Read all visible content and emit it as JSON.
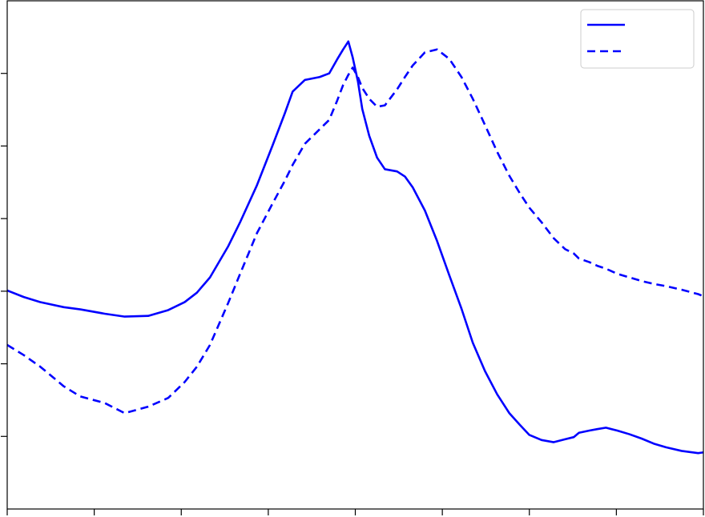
{
  "chart_data": {
    "type": "line",
    "x": [
      0,
      0.19,
      0.38,
      0.65,
      0.84,
      1.12,
      1.35,
      1.62,
      1.85,
      2.04,
      2.18,
      2.33,
      2.54,
      2.68,
      2.87,
      3.05,
      3.19,
      3.28,
      3.42,
      3.59,
      3.7,
      3.79,
      3.86,
      3.92,
      3.97,
      4.03,
      4.08,
      4.16,
      4.25,
      4.34,
      4.48,
      4.57,
      4.66,
      4.8,
      4.94,
      5.08,
      5.22,
      5.35,
      5.49,
      5.63,
      5.77,
      5.89,
      6.0,
      6.14,
      6.28,
      6.41,
      6.51,
      6.57,
      6.69,
      6.78,
      6.88,
      7.01,
      7.15,
      7.29,
      7.43,
      7.57,
      7.75,
      7.94,
      8
    ],
    "series": [
      {
        "color": "#0000ff",
        "linestyle": "solid",
        "values": [
          3.01,
          2.92,
          2.85,
          2.78,
          2.75,
          2.69,
          2.65,
          2.66,
          2.74,
          2.85,
          2.98,
          3.19,
          3.62,
          3.96,
          4.46,
          5.01,
          5.45,
          5.75,
          5.91,
          5.95,
          6.0,
          6.19,
          6.33,
          6.44,
          6.22,
          5.89,
          5.51,
          5.14,
          4.84,
          4.68,
          4.65,
          4.58,
          4.43,
          4.11,
          3.69,
          3.22,
          2.76,
          2.29,
          1.9,
          1.58,
          1.32,
          1.16,
          1.02,
          0.95,
          0.92,
          0.96,
          0.99,
          1.05,
          1.08,
          1.1,
          1.12,
          1.08,
          1.03,
          0.97,
          0.9,
          0.85,
          0.8,
          0.77,
          0.78
        ]
      },
      {
        "color": "#0000ff",
        "linestyle": "dashed",
        "values": [
          2.26,
          2.12,
          1.96,
          1.69,
          1.55,
          1.46,
          1.32,
          1.41,
          1.53,
          1.75,
          1.96,
          2.26,
          2.84,
          3.25,
          3.8,
          4.21,
          4.52,
          4.74,
          5.03,
          5.23,
          5.36,
          5.62,
          5.84,
          5.98,
          6.08,
          5.95,
          5.8,
          5.65,
          5.54,
          5.56,
          5.78,
          5.95,
          6.11,
          6.29,
          6.33,
          6.2,
          5.95,
          5.65,
          5.29,
          4.92,
          4.59,
          4.35,
          4.15,
          3.95,
          3.73,
          3.58,
          3.52,
          3.45,
          3.4,
          3.35,
          3.31,
          3.24,
          3.19,
          3.14,
          3.1,
          3.07,
          3.02,
          2.96,
          2.93
        ]
      }
    ],
    "xlim": [
      0,
      8
    ],
    "xticks": [
      0,
      1,
      2,
      3,
      4,
      5,
      6,
      7,
      8
    ],
    "ylim": [
      0,
      7
    ],
    "yticks": [
      1,
      2,
      3,
      4,
      5,
      6
    ],
    "legend": "upper right"
  }
}
